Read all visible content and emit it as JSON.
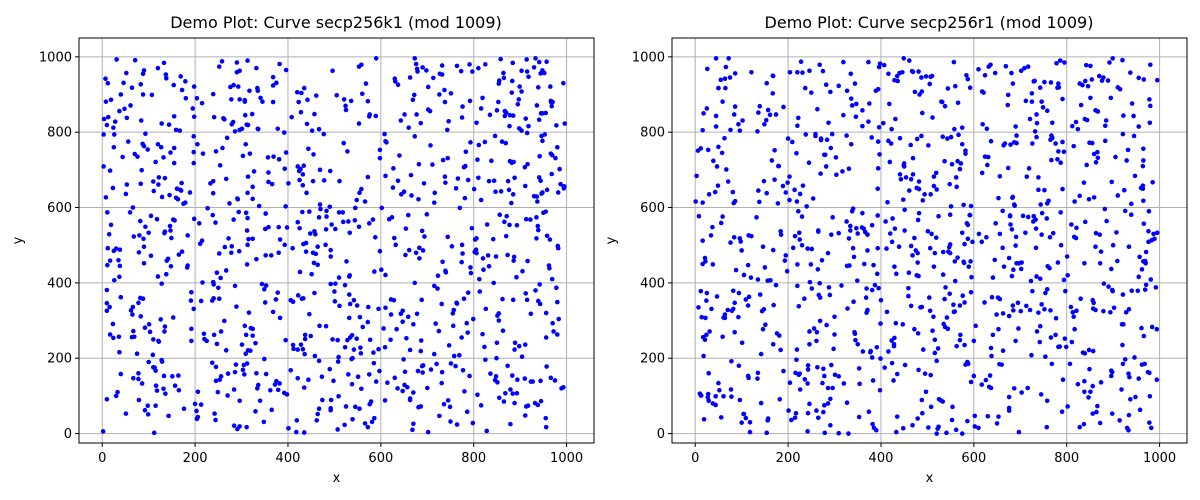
{
  "chart_data": [
    {
      "type": "scatter",
      "title": "Demo Plot: Curve secp256k1 (mod 1009)",
      "xlabel": "x",
      "ylabel": "y",
      "xlim": [
        -50,
        1059
      ],
      "ylim": [
        -25,
        1050
      ],
      "xticks": [
        0,
        200,
        400,
        600,
        800,
        1000
      ],
      "yticks": [
        0,
        200,
        400,
        600,
        800,
        1000
      ],
      "grid": true,
      "marker_color": "#0000ff",
      "seed": 256001,
      "n_points": 980,
      "modulus": 1009
    },
    {
      "type": "scatter",
      "title": "Demo Plot: Curve secp256r1 (mod 1009)",
      "xlabel": "x",
      "ylabel": "y",
      "xlim": [
        -50,
        1059
      ],
      "ylim": [
        -25,
        1050
      ],
      "xticks": [
        0,
        200,
        400,
        600,
        800,
        1000
      ],
      "yticks": [
        0,
        200,
        400,
        600,
        800,
        1000
      ],
      "grid": true,
      "marker_color": "#0000ff",
      "seed": 256002,
      "n_points": 980,
      "modulus": 1009
    }
  ],
  "colors": {
    "axes": "#000000",
    "grid": "#b0b0b0",
    "background": "#ffffff"
  }
}
